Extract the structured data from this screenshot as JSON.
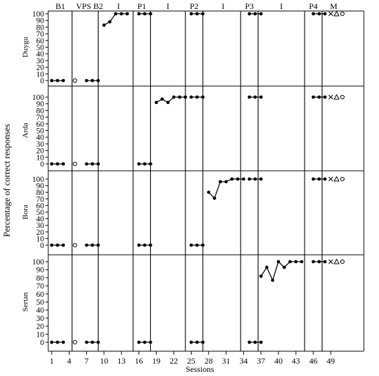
{
  "chart_data": {
    "type": "line",
    "ylabel": "Percentage of correct responses",
    "xlabel": "Sessions",
    "ylim": [
      0,
      100
    ],
    "xlim": [
      0.5,
      51
    ],
    "x_ticks": [
      1,
      4,
      7,
      10,
      13,
      16,
      19,
      22,
      25,
      28,
      31,
      34,
      37,
      40,
      43,
      46,
      49
    ],
    "y_ticks": [
      0,
      10,
      20,
      30,
      40,
      50,
      60,
      70,
      80,
      90,
      100
    ],
    "phase_lines": [
      4.5,
      9,
      15,
      18,
      24,
      27,
      33.5,
      36.5,
      44.5,
      47.5
    ],
    "phase_labels": [
      {
        "label": "B1",
        "x": 2.5
      },
      {
        "label": "VPS",
        "x": 6.5
      },
      {
        "label": "B2",
        "x": 9
      },
      {
        "label": "I",
        "x": 12.5
      },
      {
        "label": "P1",
        "x": 16.5
      },
      {
        "label": "I",
        "x": 21
      },
      {
        "label": "P2",
        "x": 25.5
      },
      {
        "label": "I",
        "x": 30.5
      },
      {
        "label": "P3",
        "x": 35
      },
      {
        "label": "I",
        "x": 40.5
      },
      {
        "label": "P4",
        "x": 46
      },
      {
        "label": "M",
        "x": 49.5
      }
    ],
    "panels": [
      {
        "participant": "Duygu",
        "series": [
          {
            "x": [
              1,
              2,
              3
            ],
            "y": [
              0,
              0,
              0
            ],
            "marker": "filled"
          },
          {
            "x": [
              5
            ],
            "y": [
              0
            ],
            "marker": "open"
          },
          {
            "x": [
              7,
              8,
              9
            ],
            "y": [
              0,
              0,
              0
            ],
            "marker": "filled"
          },
          {
            "x": [
              10,
              11,
              12,
              13,
              14
            ],
            "y": [
              83,
              88,
              100,
              100,
              100
            ],
            "marker": "filled"
          },
          {
            "x": [
              16,
              17,
              18
            ],
            "y": [
              100,
              100,
              100
            ],
            "marker": "filled"
          },
          {
            "x": [
              25,
              26,
              27
            ],
            "y": [
              100,
              100,
              100
            ],
            "marker": "filled"
          },
          {
            "x": [
              35,
              36,
              37
            ],
            "y": [
              100,
              100,
              100
            ],
            "marker": "filled"
          },
          {
            "x": [
              46,
              47,
              48
            ],
            "y": [
              100,
              100,
              100
            ],
            "marker": "filled"
          }
        ],
        "maintenance": [
          {
            "x": 49,
            "y": 100,
            "marker": "cross"
          },
          {
            "x": 50,
            "y": 100,
            "marker": "triangle"
          },
          {
            "x": 51,
            "y": 100,
            "marker": "open"
          }
        ]
      },
      {
        "participant": "Arda",
        "series": [
          {
            "x": [
              1,
              2,
              3
            ],
            "y": [
              0,
              0,
              0
            ],
            "marker": "filled"
          },
          {
            "x": [
              5
            ],
            "y": [
              0
            ],
            "marker": "open"
          },
          {
            "x": [
              7,
              8,
              9
            ],
            "y": [
              0,
              0,
              0
            ],
            "marker": "filled"
          },
          {
            "x": [
              16,
              17,
              18
            ],
            "y": [
              0,
              0,
              0
            ],
            "marker": "filled"
          },
          {
            "x": [
              19,
              20,
              21,
              22,
              23,
              24
            ],
            "y": [
              92,
              97,
              92,
              100,
              100,
              100
            ],
            "marker": "filled"
          },
          {
            "x": [
              25,
              26,
              27
            ],
            "y": [
              100,
              100,
              100
            ],
            "marker": "filled"
          },
          {
            "x": [
              35,
              36,
              37
            ],
            "y": [
              100,
              100,
              100
            ],
            "marker": "filled"
          },
          {
            "x": [
              46,
              47,
              48
            ],
            "y": [
              100,
              100,
              100
            ],
            "marker": "filled"
          }
        ],
        "maintenance": [
          {
            "x": 49,
            "y": 100,
            "marker": "cross"
          },
          {
            "x": 50,
            "y": 100,
            "marker": "triangle"
          },
          {
            "x": 51,
            "y": 100,
            "marker": "open"
          }
        ]
      },
      {
        "participant": "Bora",
        "series": [
          {
            "x": [
              1,
              2,
              3
            ],
            "y": [
              0,
              0,
              0
            ],
            "marker": "filled"
          },
          {
            "x": [
              5
            ],
            "y": [
              0
            ],
            "marker": "open"
          },
          {
            "x": [
              7,
              8,
              9
            ],
            "y": [
              0,
              0,
              0
            ],
            "marker": "filled"
          },
          {
            "x": [
              16,
              17,
              18
            ],
            "y": [
              0,
              0,
              0
            ],
            "marker": "filled"
          },
          {
            "x": [
              25,
              26,
              27
            ],
            "y": [
              0,
              0,
              0
            ],
            "marker": "filled"
          },
          {
            "x": [
              28,
              29,
              30,
              31,
              32,
              33,
              34
            ],
            "y": [
              80,
              71,
              96,
              96,
              100,
              100,
              100
            ],
            "marker": "filled"
          },
          {
            "x": [
              35,
              36,
              37
            ],
            "y": [
              100,
              100,
              100
            ],
            "marker": "filled"
          },
          {
            "x": [
              46,
              47,
              48
            ],
            "y": [
              100,
              100,
              100
            ],
            "marker": "filled"
          }
        ],
        "maintenance": [
          {
            "x": 49,
            "y": 100,
            "marker": "cross"
          },
          {
            "x": 50,
            "y": 100,
            "marker": "triangle"
          },
          {
            "x": 51,
            "y": 100,
            "marker": "open"
          }
        ]
      },
      {
        "participant": "Sertan",
        "series": [
          {
            "x": [
              1,
              2,
              3
            ],
            "y": [
              0,
              0,
              0
            ],
            "marker": "filled"
          },
          {
            "x": [
              5
            ],
            "y": [
              0
            ],
            "marker": "open"
          },
          {
            "x": [
              7,
              8,
              9
            ],
            "y": [
              0,
              0,
              0
            ],
            "marker": "filled"
          },
          {
            "x": [
              16,
              17,
              18
            ],
            "y": [
              0,
              0,
              0
            ],
            "marker": "filled"
          },
          {
            "x": [
              25,
              26,
              27
            ],
            "y": [
              0,
              0,
              0
            ],
            "marker": "filled"
          },
          {
            "x": [
              35,
              36,
              37
            ],
            "y": [
              0,
              0,
              0
            ],
            "marker": "filled"
          },
          {
            "x": [
              37,
              38,
              39,
              40,
              41,
              42,
              43,
              44
            ],
            "y": [
              82,
              93,
              77,
              100,
              93,
              100,
              100,
              100
            ],
            "marker": "filled"
          },
          {
            "x": [
              46,
              47,
              48
            ],
            "y": [
              100,
              100,
              100
            ],
            "marker": "filled"
          }
        ],
        "maintenance": [
          {
            "x": 49,
            "y": 100,
            "marker": "cross"
          },
          {
            "x": 50,
            "y": 100,
            "marker": "triangle"
          },
          {
            "x": 51,
            "y": 100,
            "marker": "open"
          }
        ]
      }
    ]
  }
}
